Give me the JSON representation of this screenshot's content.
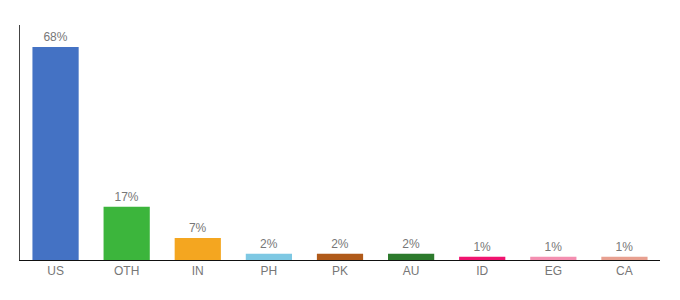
{
  "chart_data": {
    "type": "bar",
    "categories": [
      "US",
      "OTH",
      "IN",
      "PH",
      "PK",
      "AU",
      "ID",
      "EG",
      "CA"
    ],
    "values": [
      68,
      17,
      7,
      2,
      2,
      2,
      1,
      1,
      1
    ],
    "value_labels": [
      "68%",
      "17%",
      "7%",
      "2%",
      "2%",
      "2%",
      "1%",
      "1%",
      "1%"
    ],
    "colors": [
      "#4472c4",
      "#3cb53c",
      "#f4a620",
      "#7ec8e3",
      "#b05a1a",
      "#2d7a2d",
      "#f0136f",
      "#f48fb1",
      "#e8a090"
    ],
    "ylim": [
      0,
      75
    ],
    "data_labels": true,
    "tick_labels": "x",
    "grid": false
  }
}
